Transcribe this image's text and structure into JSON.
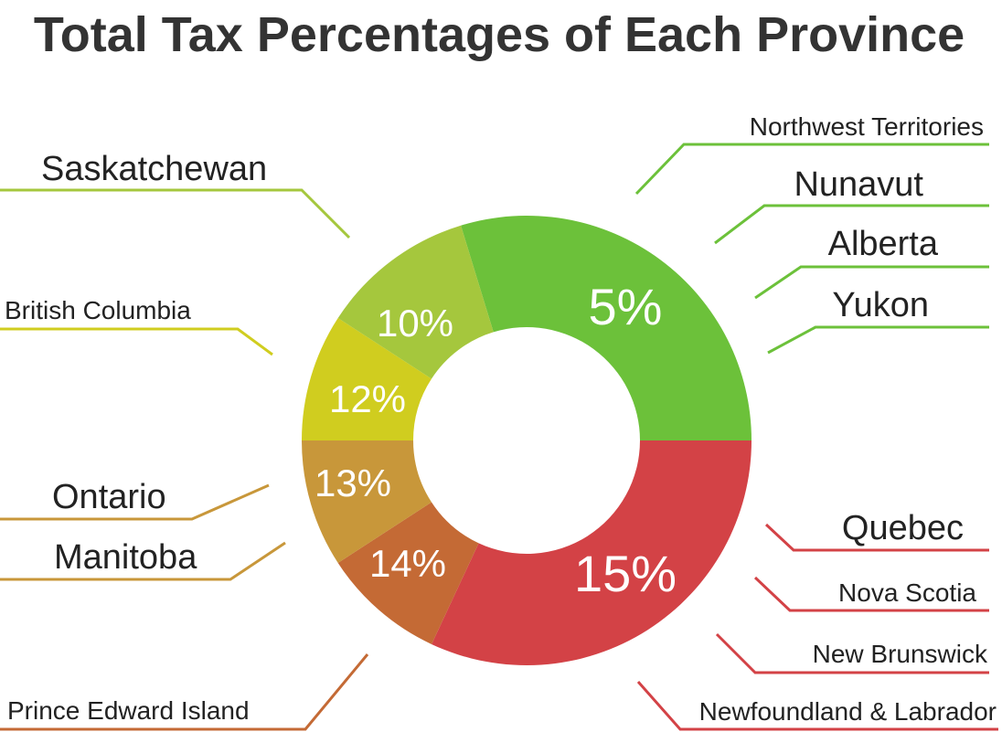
{
  "chart_data": {
    "type": "pie",
    "title": "Total Tax Percentages of Each Province",
    "slices": [
      {
        "label": "5%",
        "value": 5,
        "color": "#6cc13a",
        "provinces": [
          "Northwest Territories",
          "Nunavut",
          "Alberta",
          "Yukon"
        ]
      },
      {
        "label": "15%",
        "value": 15,
        "color": "#d34246",
        "provinces": [
          "Quebec",
          "Nova Scotia",
          "New Brunswick",
          "Newfoundland & Labrador"
        ]
      },
      {
        "label": "14%",
        "value": 14,
        "color": "#c46a35",
        "provinces": [
          "Prince Edward Island"
        ]
      },
      {
        "label": "13%",
        "value": 13,
        "color": "#c8973a",
        "provinces": [
          "Ontario",
          "Manitoba"
        ]
      },
      {
        "label": "12%",
        "value": 12,
        "color": "#d0cd1f",
        "provinces": [
          "British Columbia"
        ]
      },
      {
        "label": "10%",
        "value": 10,
        "color": "#a5c73d",
        "provinces": [
          "Saskatchewan"
        ]
      }
    ]
  }
}
